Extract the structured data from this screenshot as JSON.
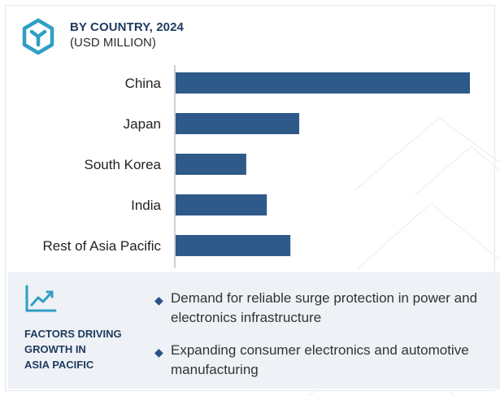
{
  "header": {
    "title": "BY COUNTRY, 2024",
    "subtitle": "(USD MILLION)",
    "logo_icon": "hexagon-y-icon"
  },
  "colors": {
    "bar": "#2e5a8a",
    "accent": "#2f9fc4",
    "panel_bg": "#eef1f6",
    "title": "#1f3a5f"
  },
  "chart_data": {
    "type": "bar",
    "orientation": "horizontal",
    "categories": [
      "China",
      "Japan",
      "South Korea",
      "India",
      "Rest of Asia Pacific"
    ],
    "values": [
      100,
      42,
      24,
      31,
      39
    ],
    "xlim": [
      0,
      100
    ],
    "grid": false
  },
  "factors": {
    "icon": "line-chart-icon",
    "title_lines": [
      "FACTORS DRIVING",
      "GROWTH IN",
      "ASIA PACIFIC"
    ],
    "items": [
      "Demand for reliable surge protection in power and electronics infrastructure",
      "Expanding consumer electronics and automotive manufacturing"
    ]
  }
}
